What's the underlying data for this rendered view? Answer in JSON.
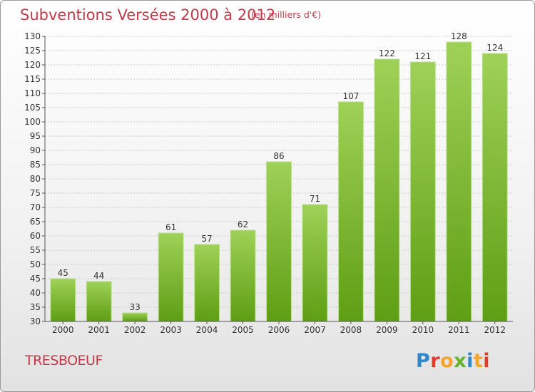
{
  "header": {
    "title": "Subventions Versées 2000 à 2012",
    "subtitle": "(en milliers d'€)"
  },
  "footer": {
    "commune": "TRESBOEUF",
    "brand": "Proxiti"
  },
  "colors": {
    "title": "#c23a4a",
    "bar_light": "#9fd157",
    "bar_dark": "#5e9e14",
    "grid": "#c9c9c9"
  },
  "chart_data": {
    "type": "bar",
    "title": "Subventions Versées 2000 à 2012",
    "subtitle": "(en milliers d'€)",
    "xlabel": "",
    "ylabel": "",
    "categories": [
      "2000",
      "2001",
      "2002",
      "2003",
      "2004",
      "2005",
      "2006",
      "2007",
      "2008",
      "2009",
      "2010",
      "2011",
      "2012"
    ],
    "values": [
      45,
      44,
      33,
      61,
      57,
      62,
      86,
      71,
      107,
      122,
      121,
      128,
      124
    ],
    "ylim": [
      30,
      130
    ],
    "ytick_step": 5,
    "grid": true,
    "data_labels": true
  }
}
